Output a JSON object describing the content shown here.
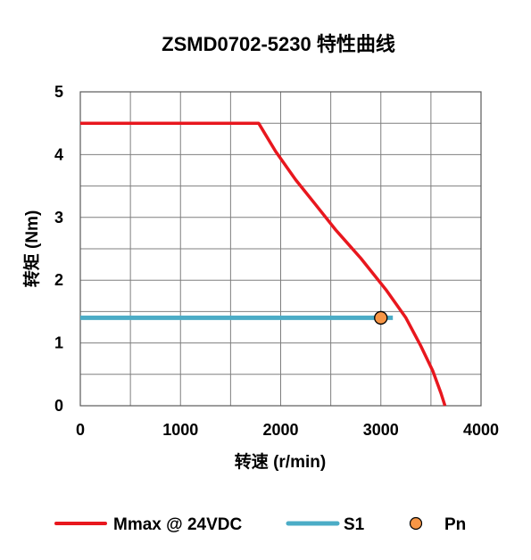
{
  "chart_data": {
    "type": "line",
    "title": "ZSMD0702-5230 特性曲线",
    "xlabel": "转速 (r/min)",
    "ylabel": "转矩 (Nm)",
    "xlim": [
      0,
      4000
    ],
    "ylim": [
      0,
      5
    ],
    "x_ticks": [
      0,
      1000,
      2000,
      3000,
      4000
    ],
    "y_ticks": [
      0,
      1,
      2,
      3,
      4,
      5
    ],
    "x_minor_step": 500,
    "y_minor_step": 0.5,
    "grid": true,
    "legend_position": "bottom",
    "series": [
      {
        "name": "Mmax @ 24VDC",
        "kind": "line",
        "color": "#e8171e",
        "points": [
          [
            0,
            4.5
          ],
          [
            1780,
            4.5
          ],
          [
            1950,
            4.05
          ],
          [
            2150,
            3.6
          ],
          [
            2350,
            3.2
          ],
          [
            2550,
            2.8
          ],
          [
            2800,
            2.35
          ],
          [
            3050,
            1.85
          ],
          [
            3250,
            1.4
          ],
          [
            3400,
            0.95
          ],
          [
            3520,
            0.55
          ],
          [
            3600,
            0.2
          ],
          [
            3640,
            0.0
          ]
        ]
      },
      {
        "name": "S1",
        "kind": "line",
        "color": "#4bacc6",
        "points": [
          [
            0,
            1.4
          ],
          [
            3120,
            1.4
          ]
        ]
      },
      {
        "name": "Pn",
        "kind": "marker",
        "color": "#f79646",
        "points": [
          [
            3000,
            1.4
          ]
        ]
      }
    ]
  }
}
